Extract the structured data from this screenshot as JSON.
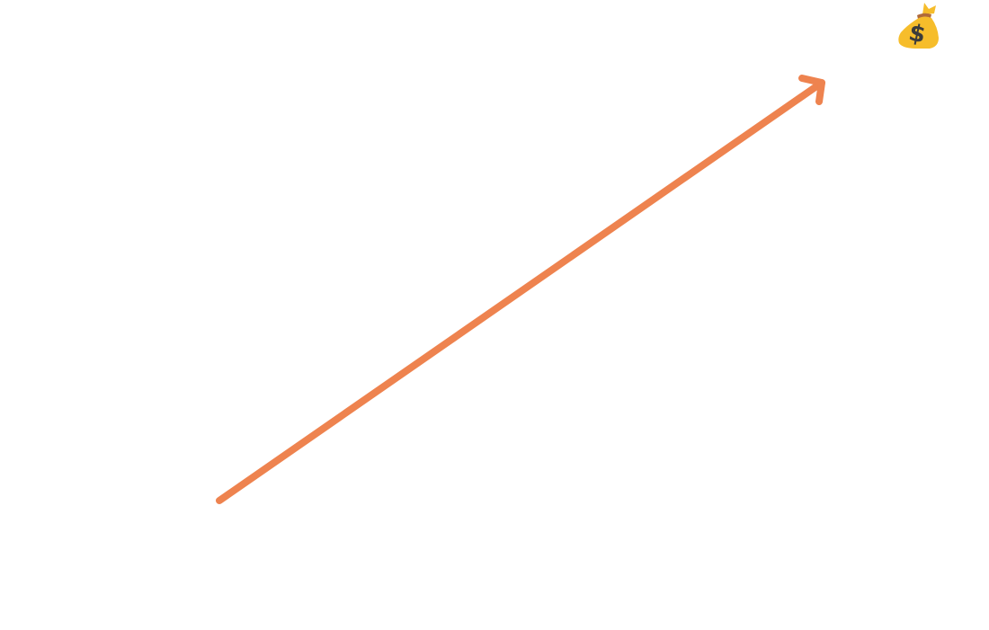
{
  "icons": {
    "arrow": "growth-arrow-icon",
    "money_bag": "money-bag-icon"
  },
  "colors": {
    "background": "#ffffff",
    "arrow": "#ee834f",
    "bag_fill": "#f6bd2b",
    "bag_shadow": "#e6a21a",
    "bag_tie": "#b06a3b",
    "dollar_sign": "#3b3b3b"
  }
}
